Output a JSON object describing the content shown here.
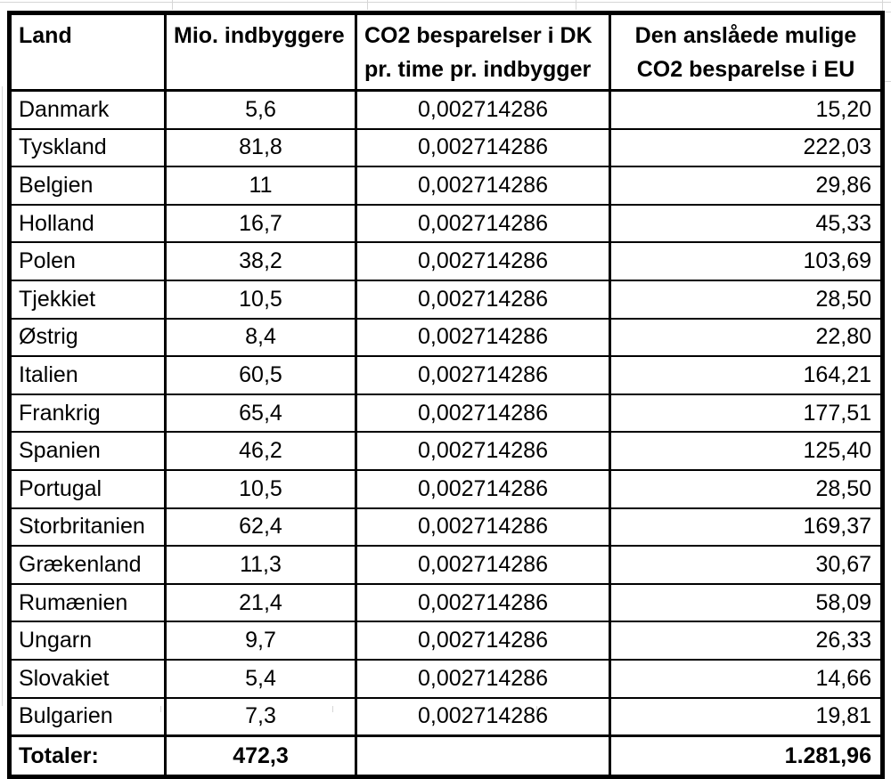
{
  "chart_data": {
    "type": "table",
    "title": "",
    "columns": [
      "Land",
      "Mio. indbyggere",
      "CO2 besparelser i DK pr. time pr. indbygger",
      "Den anslåede mulige CO2 besparelse i EU"
    ],
    "rows": [
      [
        "Danmark",
        5.6,
        0.002714286,
        15.2
      ],
      [
        "Tyskland",
        81.8,
        0.002714286,
        222.03
      ],
      [
        "Belgien",
        11,
        0.002714286,
        29.86
      ],
      [
        "Holland",
        16.7,
        0.002714286,
        45.33
      ],
      [
        "Polen",
        38.2,
        0.002714286,
        103.69
      ],
      [
        "Tjekkiet",
        10.5,
        0.002714286,
        28.5
      ],
      [
        "Østrig",
        8.4,
        0.002714286,
        22.8
      ],
      [
        "Italien",
        60.5,
        0.002714286,
        164.21
      ],
      [
        "Frankrig",
        65.4,
        0.002714286,
        177.51
      ],
      [
        "Spanien",
        46.2,
        0.002714286,
        125.4
      ],
      [
        "Portugal",
        10.5,
        0.002714286,
        28.5
      ],
      [
        "Storbritanien",
        62.4,
        0.002714286,
        169.37
      ],
      [
        "Grækenland",
        11.3,
        0.002714286,
        30.67
      ],
      [
        "Rumænien",
        21.4,
        0.002714286,
        58.09
      ],
      [
        "Ungarn",
        9.7,
        0.002714286,
        26.33
      ],
      [
        "Slovakiet",
        5.4,
        0.002714286,
        14.66
      ],
      [
        "Bulgarien",
        7.3,
        0.002714286,
        19.81
      ]
    ],
    "totals": {
      "label": "Totaler:",
      "population_mio": 472.3,
      "eu_saving": 1281.96
    }
  },
  "table": {
    "headers": [
      {
        "line1": "Land",
        "line2": ""
      },
      {
        "line1": "Mio. indbyggere",
        "line2": ""
      },
      {
        "line1": "CO2 besparelser i DK",
        "line2": "pr. time pr. indbygger"
      },
      {
        "line1": "Den anslåede mulige",
        "line2": "CO2 besparelse i EU"
      }
    ],
    "rows": [
      [
        "Danmark",
        "5,6",
        "0,002714286",
        "15,20"
      ],
      [
        "Tyskland",
        "81,8",
        "0,002714286",
        "222,03"
      ],
      [
        "Belgien",
        "11",
        "0,002714286",
        "29,86"
      ],
      [
        "Holland",
        "16,7",
        "0,002714286",
        "45,33"
      ],
      [
        "Polen",
        "38,2",
        "0,002714286",
        "103,69"
      ],
      [
        "Tjekkiet",
        "10,5",
        "0,002714286",
        "28,50"
      ],
      [
        "Østrig",
        "8,4",
        "0,002714286",
        "22,80"
      ],
      [
        "Italien",
        "60,5",
        "0,002714286",
        "164,21"
      ],
      [
        "Frankrig",
        "65,4",
        "0,002714286",
        "177,51"
      ],
      [
        "Spanien",
        "46,2",
        "0,002714286",
        "125,40"
      ],
      [
        "Portugal",
        "10,5",
        "0,002714286",
        "28,50"
      ],
      [
        "Storbritanien",
        "62,4",
        "0,002714286",
        "169,37"
      ],
      [
        "Grækenland",
        "11,3",
        "0,002714286",
        "30,67"
      ],
      [
        "Rumænien",
        "21,4",
        "0,002714286",
        "58,09"
      ],
      [
        "Ungarn",
        "9,7",
        "0,002714286",
        "26,33"
      ],
      [
        "Slovakiet",
        "5,4",
        "0,002714286",
        "14,66"
      ],
      [
        "Bulgarien",
        "7,3",
        "0,002714286",
        "19,81"
      ]
    ],
    "total": {
      "label": "Totaler:",
      "population": "472,3",
      "rate": "",
      "eu": "1.281,96"
    }
  },
  "colors": {
    "border": "#000000",
    "text": "#000000",
    "gridline": "#d6d6d6",
    "background": "#ffffff"
  }
}
